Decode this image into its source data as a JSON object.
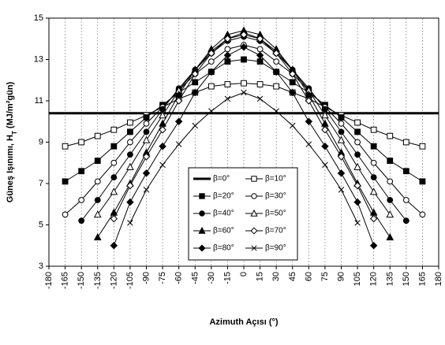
{
  "chart_data": {
    "type": "line",
    "title": "",
    "xlabel": "Azimuth Açısı (°)",
    "ylabel_prefix": "Güneş Işınımı, H",
    "ylabel_sub": "T",
    "ylabel_suffix": " (MJ/m²gün)",
    "xlim": [
      -180,
      180
    ],
    "ylim": [
      3,
      15
    ],
    "xticks": [
      -180,
      -165,
      -150,
      -135,
      -120,
      -105,
      -90,
      -75,
      -60,
      -45,
      -30,
      -15,
      0,
      15,
      30,
      45,
      60,
      75,
      90,
      105,
      120,
      135,
      150,
      165,
      180
    ],
    "yticks": [
      3,
      5,
      7,
      9,
      11,
      13,
      15
    ],
    "grid": "vertical",
    "legend_position": "bottom-center",
    "series": [
      {
        "name": "β=0°",
        "marker": "none",
        "x": [
          -180,
          180
        ],
        "y": [
          10.4,
          10.4
        ]
      },
      {
        "name": "β=10°",
        "marker": "open-square",
        "x": [
          -165,
          -150,
          -135,
          -120,
          -105,
          -90,
          -75,
          -60,
          -45,
          -30,
          -15,
          0,
          15,
          30,
          45,
          60,
          75,
          90,
          105,
          120,
          135,
          150,
          165
        ],
        "y": [
          8.8,
          9.0,
          9.3,
          9.6,
          9.95,
          10.3,
          10.7,
          11.1,
          11.4,
          11.7,
          11.8,
          11.85,
          11.8,
          11.7,
          11.4,
          11.1,
          10.7,
          10.3,
          9.95,
          9.6,
          9.3,
          9.0,
          8.8
        ]
      },
      {
        "name": "β=20°",
        "marker": "filled-square",
        "x": [
          -165,
          -150,
          -135,
          -120,
          -105,
          -90,
          -75,
          -60,
          -45,
          -30,
          -15,
          0,
          15,
          30,
          45,
          60,
          75,
          90,
          105,
          120,
          135,
          150,
          165
        ],
        "y": [
          7.1,
          7.6,
          8.1,
          8.8,
          9.5,
          10.2,
          10.8,
          11.4,
          11.9,
          12.4,
          12.9,
          13.0,
          12.9,
          12.4,
          11.9,
          11.4,
          10.8,
          10.2,
          9.5,
          8.8,
          8.1,
          7.6,
          7.1
        ]
      },
      {
        "name": "β=30°",
        "marker": "open-circle",
        "x": [
          -165,
          -150,
          -135,
          -120,
          -105,
          -90,
          -75,
          -60,
          -45,
          -30,
          -15,
          0,
          15,
          30,
          45,
          60,
          75,
          90,
          105,
          120,
          135,
          150,
          165
        ],
        "y": [
          5.5,
          6.2,
          7.1,
          8.0,
          9.0,
          9.9,
          10.7,
          11.5,
          12.3,
          12.9,
          13.5,
          13.7,
          13.5,
          12.9,
          12.3,
          11.5,
          10.7,
          9.9,
          9.0,
          8.0,
          7.1,
          6.2,
          5.5
        ]
      },
      {
        "name": "β=40°",
        "marker": "filled-circle",
        "x": [
          -150,
          -135,
          -120,
          -105,
          -90,
          -75,
          -60,
          -45,
          -30,
          -15,
          0,
          15,
          30,
          45,
          60,
          75,
          90,
          105,
          120,
          135,
          150
        ],
        "y": [
          5.2,
          6.2,
          7.3,
          8.4,
          9.5,
          10.6,
          11.6,
          12.5,
          13.3,
          13.9,
          14.1,
          13.9,
          13.3,
          12.5,
          11.6,
          10.6,
          9.5,
          8.4,
          7.3,
          6.2,
          5.2
        ]
      },
      {
        "name": "β=50°",
        "marker": "open-triangle",
        "x": [
          -135,
          -120,
          -105,
          -90,
          -75,
          -60,
          -45,
          -30,
          -15,
          0,
          15,
          30,
          45,
          60,
          75,
          90,
          105,
          120,
          135
        ],
        "y": [
          5.5,
          6.6,
          7.8,
          9.1,
          10.3,
          11.5,
          12.5,
          13.4,
          14.0,
          14.3,
          14.0,
          13.4,
          12.5,
          11.5,
          10.3,
          9.1,
          7.8,
          6.6,
          5.5
        ]
      },
      {
        "name": "β=60°",
        "marker": "filled-triangle",
        "x": [
          -135,
          -120,
          -105,
          -90,
          -75,
          -60,
          -45,
          -30,
          -15,
          0,
          15,
          30,
          45,
          60,
          75,
          90,
          105,
          120,
          135
        ],
        "y": [
          4.4,
          5.6,
          7.0,
          8.5,
          9.9,
          11.3,
          12.5,
          13.5,
          14.2,
          14.4,
          14.2,
          13.5,
          12.5,
          11.3,
          9.9,
          8.5,
          7.0,
          5.6,
          4.4
        ]
      },
      {
        "name": "β=70°",
        "marker": "open-diamond",
        "x": [
          -120,
          -105,
          -90,
          -75,
          -60,
          -45,
          -30,
          -15,
          0,
          15,
          30,
          45,
          60,
          75,
          90,
          105,
          120
        ],
        "y": [
          5.3,
          6.9,
          8.3,
          9.6,
          11.0,
          12.3,
          13.3,
          14.0,
          14.2,
          14.0,
          13.3,
          12.3,
          11.0,
          9.6,
          8.3,
          6.9,
          5.3
        ]
      },
      {
        "name": "β=80°",
        "marker": "filled-diamond",
        "x": [
          -120,
          -105,
          -90,
          -75,
          -60,
          -45,
          -30,
          -15,
          0,
          15,
          30,
          45,
          60,
          75,
          90,
          105,
          120
        ],
        "y": [
          4.0,
          6.1,
          7.5,
          8.8,
          10.0,
          11.4,
          12.4,
          13.2,
          13.6,
          13.2,
          12.4,
          11.4,
          10.0,
          8.8,
          7.5,
          6.1,
          4.0
        ]
      },
      {
        "name": "β=90°",
        "marker": "x",
        "x": [
          -105,
          -90,
          -75,
          -60,
          -45,
          -30,
          -15,
          0,
          15,
          30,
          45,
          60,
          75,
          90,
          105
        ],
        "y": [
          5.1,
          6.7,
          7.9,
          8.9,
          9.8,
          10.5,
          11.1,
          11.4,
          11.1,
          10.5,
          9.8,
          8.9,
          7.9,
          6.7,
          5.1
        ]
      }
    ]
  }
}
